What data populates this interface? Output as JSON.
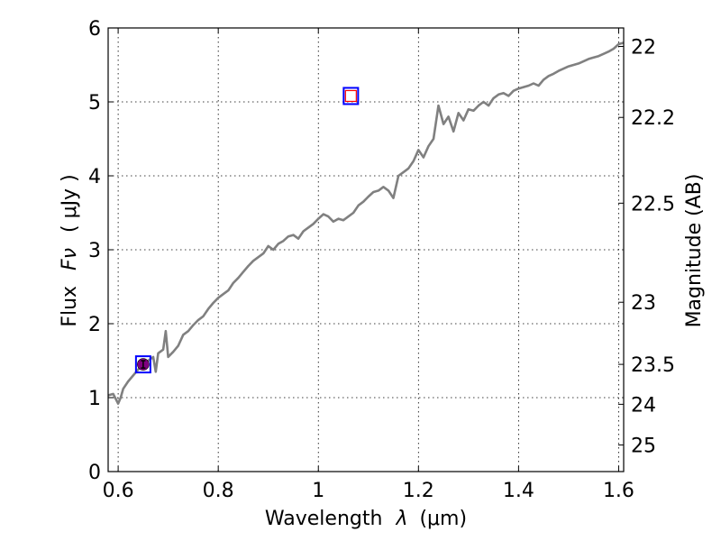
{
  "chart_data": {
    "type": "line",
    "title": "",
    "xlabel_text": "Wavelength",
    "xlabel_symbol": "λ",
    "xlabel_unit": "(μm)",
    "ylabel_text": "Flux",
    "ylabel_symbol": "Fν",
    "ylabel_unit": "( μJy )",
    "y2label": "Magnitude (AB)",
    "xlim": [
      0.58,
      1.61
    ],
    "ylim": [
      0,
      6
    ],
    "grid": true,
    "x_ticks": [
      0.6,
      0.8,
      1.0,
      1.2,
      1.4,
      1.6
    ],
    "x_tick_labels": [
      "0.6",
      "0.8",
      "1",
      "1.2",
      "1.4",
      "1.6"
    ],
    "y_ticks": [
      0,
      1,
      2,
      3,
      4,
      5,
      6
    ],
    "y_tick_labels": [
      "0",
      "1",
      "2",
      "3",
      "4",
      "5",
      "6"
    ],
    "y2_ticks": [
      {
        "label": "22",
        "flux": 5.75
      },
      {
        "label": "22.2",
        "flux": 4.79
      },
      {
        "label": "22.5",
        "flux": 3.63
      },
      {
        "label": "23",
        "flux": 2.29
      },
      {
        "label": "23.5",
        "flux": 1.45
      },
      {
        "label": "24",
        "flux": 0.91
      },
      {
        "label": "25",
        "flux": 0.36
      }
    ],
    "colors": {
      "spectrum": "#808080",
      "box": "#0000ff",
      "inner_square": "#ff0000",
      "circle": "#800080",
      "grid": "#000000"
    },
    "series": [
      {
        "name": "spectrum",
        "x": [
          0.58,
          0.59,
          0.6,
          0.605,
          0.61,
          0.62,
          0.63,
          0.64,
          0.65,
          0.66,
          0.67,
          0.675,
          0.68,
          0.69,
          0.695,
          0.7,
          0.71,
          0.72,
          0.73,
          0.74,
          0.75,
          0.76,
          0.77,
          0.78,
          0.79,
          0.8,
          0.81,
          0.82,
          0.83,
          0.84,
          0.85,
          0.86,
          0.87,
          0.88,
          0.89,
          0.9,
          0.91,
          0.92,
          0.93,
          0.94,
          0.95,
          0.96,
          0.97,
          0.98,
          0.99,
          1.0,
          1.01,
          1.02,
          1.03,
          1.04,
          1.05,
          1.06,
          1.07,
          1.08,
          1.09,
          1.1,
          1.11,
          1.12,
          1.13,
          1.14,
          1.15,
          1.16,
          1.17,
          1.18,
          1.19,
          1.2,
          1.21,
          1.22,
          1.23,
          1.24,
          1.25,
          1.26,
          1.27,
          1.28,
          1.29,
          1.3,
          1.31,
          1.32,
          1.33,
          1.34,
          1.35,
          1.36,
          1.37,
          1.38,
          1.39,
          1.4,
          1.41,
          1.42,
          1.43,
          1.44,
          1.45,
          1.46,
          1.47,
          1.48,
          1.49,
          1.5,
          1.51,
          1.52,
          1.53,
          1.54,
          1.55,
          1.56,
          1.57,
          1.58,
          1.59,
          1.6,
          1.61
        ],
        "y": [
          1.03,
          1.05,
          0.92,
          1.0,
          1.12,
          1.22,
          1.3,
          1.38,
          1.45,
          1.5,
          1.55,
          1.35,
          1.6,
          1.65,
          1.9,
          1.55,
          1.62,
          1.7,
          1.85,
          1.9,
          1.98,
          2.05,
          2.1,
          2.2,
          2.28,
          2.35,
          2.4,
          2.45,
          2.55,
          2.62,
          2.7,
          2.78,
          2.85,
          2.9,
          2.95,
          3.05,
          3.0,
          3.08,
          3.12,
          3.18,
          3.2,
          3.15,
          3.25,
          3.3,
          3.35,
          3.42,
          3.48,
          3.45,
          3.38,
          3.42,
          3.4,
          3.45,
          3.5,
          3.6,
          3.65,
          3.72,
          3.78,
          3.8,
          3.85,
          3.8,
          3.7,
          4.0,
          4.05,
          4.1,
          4.2,
          4.35,
          4.25,
          4.4,
          4.5,
          4.95,
          4.7,
          4.8,
          4.6,
          4.85,
          4.75,
          4.9,
          4.88,
          4.95,
          5.0,
          4.95,
          5.05,
          5.1,
          5.12,
          5.08,
          5.15,
          5.18,
          5.2,
          5.22,
          5.25,
          5.22,
          5.3,
          5.35,
          5.38,
          5.42,
          5.45,
          5.48,
          5.5,
          5.52,
          5.55,
          5.58,
          5.6,
          5.62,
          5.65,
          5.68,
          5.72,
          5.78,
          5.8
        ]
      }
    ],
    "photometry": [
      {
        "x": 0.65,
        "y": 1.45,
        "marker": "box-circle",
        "yerr": 0.05
      },
      {
        "x": 1.065,
        "y": 5.08,
        "marker": "box-square"
      }
    ]
  }
}
